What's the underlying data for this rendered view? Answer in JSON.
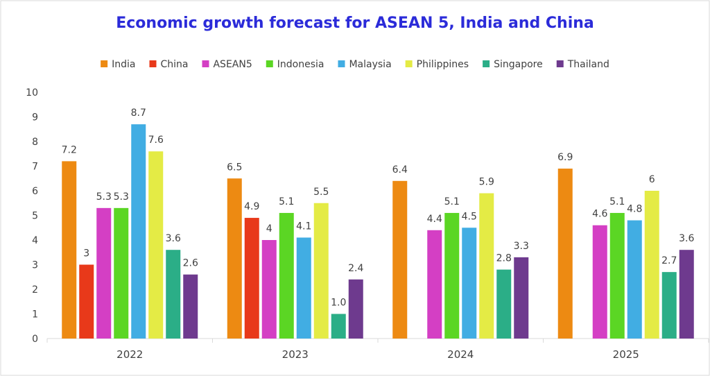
{
  "chart_data": {
    "type": "bar",
    "title": "Economic growth forecast for ASEAN 5, India and China",
    "xlabel": "",
    "ylabel": "",
    "ylim": [
      0,
      10
    ],
    "yticks": [
      "0",
      "1",
      "2",
      "3",
      "4",
      "5",
      "6",
      "7",
      "8",
      "9",
      "10"
    ],
    "grid": false,
    "legend_position": "top",
    "categories": [
      "2022",
      "2023",
      "2024",
      "2025"
    ],
    "series": [
      {
        "name": "India",
        "color": "#ED8A12",
        "values": [
          7.2,
          6.5,
          6.4,
          6.9
        ],
        "labels": [
          "7.2",
          "6.5",
          "6.4",
          "6.9"
        ]
      },
      {
        "name": "China",
        "color": "#E8391A",
        "values": [
          3,
          4.9,
          null,
          null
        ],
        "labels": [
          "3",
          "4.9",
          "",
          ""
        ]
      },
      {
        "name": "ASEAN5",
        "color": "#D43FC4",
        "values": [
          5.3,
          4,
          4.4,
          4.6
        ],
        "labels": [
          "5.3",
          "4",
          "4.4",
          "4.6"
        ]
      },
      {
        "name": "Indonesia",
        "color": "#5BD624",
        "values": [
          5.3,
          5.1,
          5.1,
          5.1
        ],
        "labels": [
          "5.3",
          "5.1",
          "5.1",
          "5.1"
        ]
      },
      {
        "name": "Malaysia",
        "color": "#41ADE3",
        "values": [
          8.7,
          4.1,
          4.5,
          4.8
        ],
        "labels": [
          "8.7",
          "4.1",
          "4.5",
          "4.8"
        ]
      },
      {
        "name": "Philippines",
        "color": "#E4EB45",
        "values": [
          7.6,
          5.5,
          5.9,
          6
        ],
        "labels": [
          "7.6",
          "5.5",
          "5.9",
          "6"
        ]
      },
      {
        "name": "Singapore",
        "color": "#2BAE87",
        "values": [
          3.6,
          1.0,
          2.8,
          2.7
        ],
        "labels": [
          "3.6",
          "1.0",
          "2.8",
          "2.7"
        ]
      },
      {
        "name": "Thailand",
        "color": "#6E3A8E",
        "values": [
          2.6,
          2.4,
          3.3,
          3.6
        ],
        "labels": [
          "2.6",
          "2.4",
          "3.3",
          "3.6"
        ]
      }
    ],
    "title_color": "#2B2BD9"
  }
}
